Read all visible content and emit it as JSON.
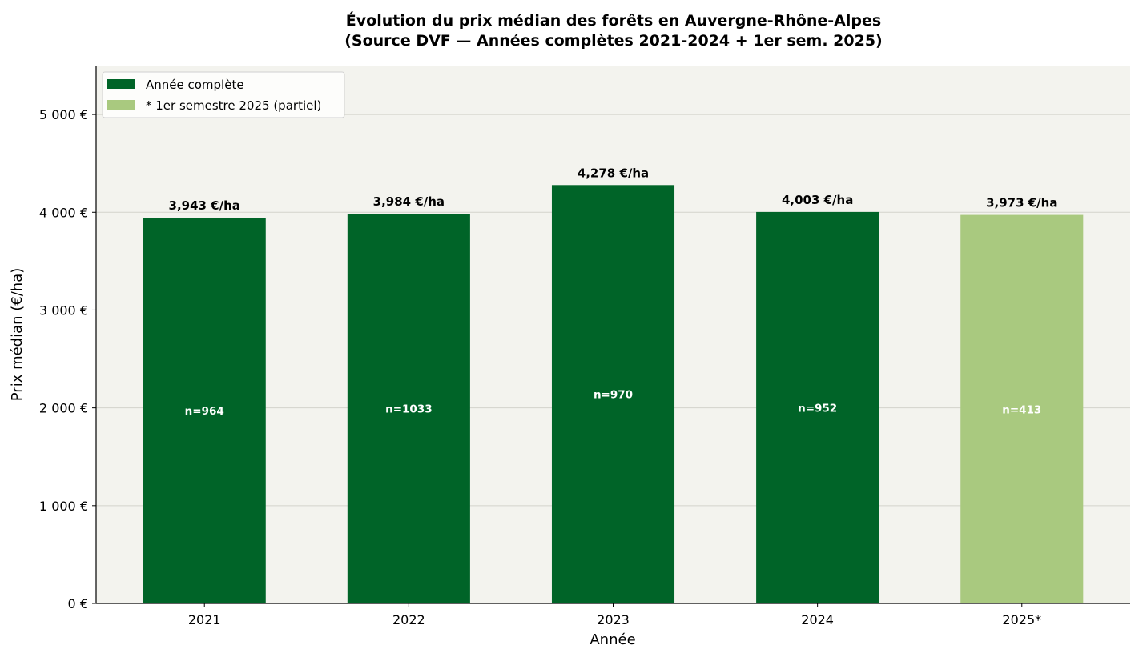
{
  "chart_data": {
    "type": "bar",
    "title_line1": "Évolution du prix médian des forêts en Auvergne-Rhône-Alpes",
    "title_line2": "(Source DVF — Années complètes 2021-2024 + 1er sem. 2025)",
    "xlabel": "Année",
    "ylabel": "Prix médian (€/ha)",
    "categories": [
      "2021",
      "2022",
      "2023",
      "2024",
      "2025*"
    ],
    "values": [
      3943,
      3984,
      4278,
      4003,
      3973
    ],
    "value_labels": [
      "3,943 €/ha",
      "3,984 €/ha",
      "4,278 €/ha",
      "4,003 €/ha",
      "3,973 €/ha"
    ],
    "counts": [
      "n=964",
      "n=1033",
      "n=970",
      "n=952",
      "n=413"
    ],
    "partial": [
      false,
      false,
      false,
      false,
      true
    ],
    "ylim": [
      0,
      5500
    ],
    "yticks": [
      0,
      1000,
      2000,
      3000,
      4000,
      5000
    ],
    "ytick_labels": [
      "0 €",
      "1 000 €",
      "2 000 €",
      "3 000 €",
      "4 000 €",
      "5 000 €"
    ],
    "grid": "horizontal",
    "legend_position": "top-left",
    "legend": [
      {
        "label": "Année complète",
        "color": "#006428"
      },
      {
        "label": "* 1er semestre 2025 (partiel)",
        "color": "#a9c97f"
      }
    ],
    "colors": {
      "full": "#006428",
      "partial": "#a9c97f",
      "background": "#f3f3ee",
      "grid": "#d3d3cc"
    }
  }
}
